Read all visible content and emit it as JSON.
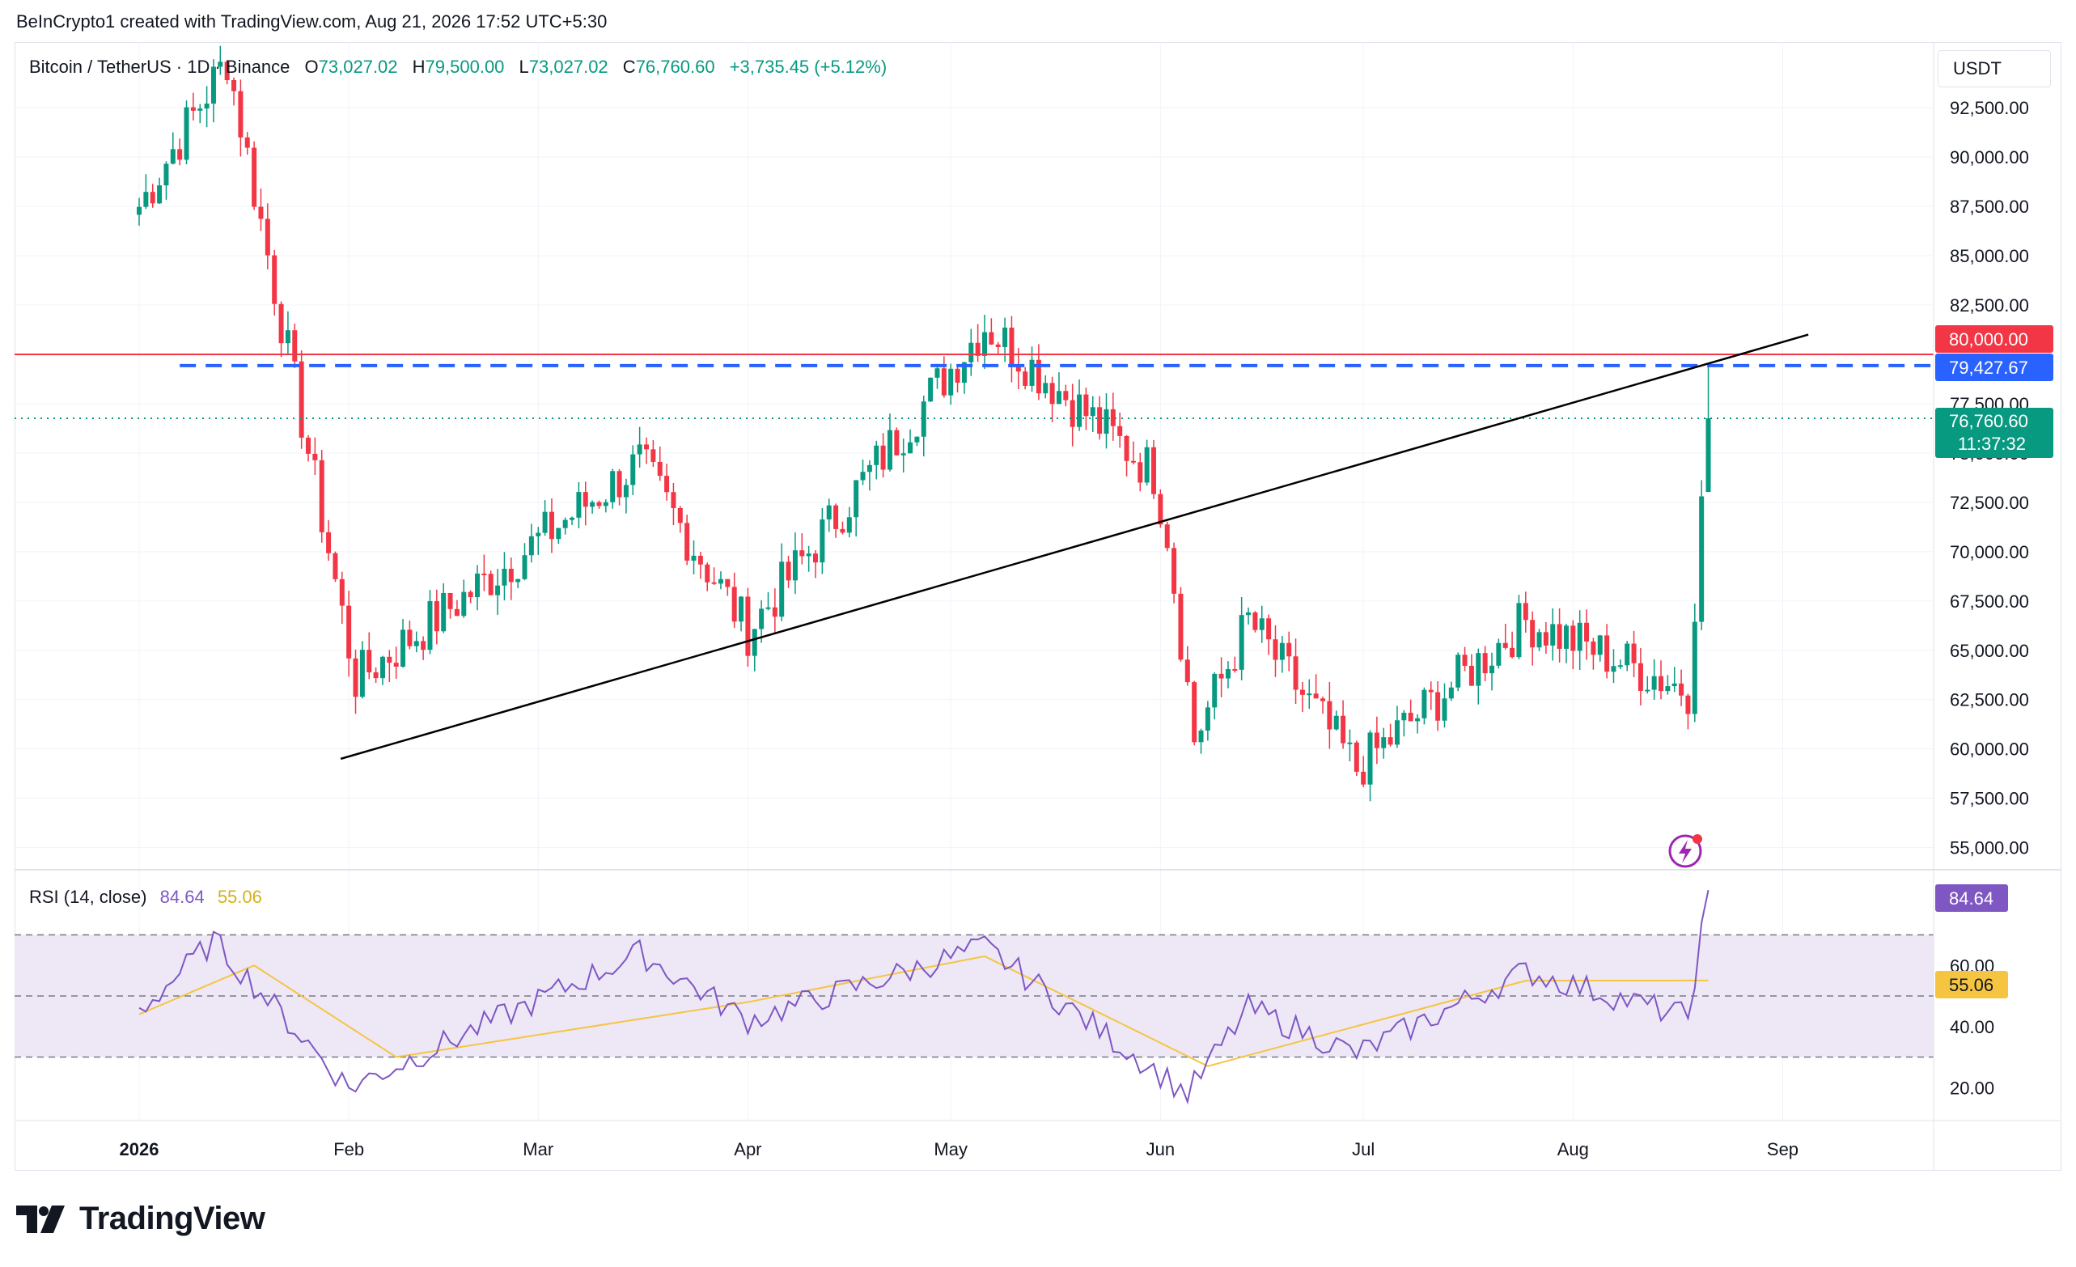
{
  "header": {
    "credit": "BeInCrypto1 created with TradingView.com, Aug 21, 2026 17:52 UTC+5:30"
  },
  "legend": {
    "symbol": "Bitcoin / TetherUS · 1D · Binance",
    "open_label": "O",
    "open": "73,027.02",
    "high_label": "H",
    "high": "79,500.00",
    "low_label": "L",
    "low": "73,027.02",
    "close_label": "C",
    "close": "76,760.60",
    "change": "+3,735.45 (+5.12%)"
  },
  "currency": "USDT",
  "rsi_legend": {
    "label": "RSI (14, close)",
    "value": "84.64",
    "ma": "55.06"
  },
  "badges": {
    "resistance": "80,000.00",
    "dashed_level": "79,427.67",
    "last_price": "76,760.60",
    "countdown": "11:37:32",
    "rsi_value": "84.64",
    "rsi_ma": "55.06"
  },
  "footer": {
    "brand": "TradingView"
  },
  "colors": {
    "up": "#089981",
    "down": "#f23645",
    "resistance": "#f23645",
    "dashed_level": "#2962ff",
    "trendline": "#000000",
    "rsi_line": "#7e57c2",
    "rsi_ma": "#f5c542",
    "rsi_band": "#ede7f6"
  },
  "chart_data": [
    {
      "type": "candlestick",
      "price_axis": {
        "ticks": [
          "92,500.00",
          "90,000.00",
          "87,500.00",
          "85,000.00",
          "82,500.00",
          "77,500.00",
          "75,000.00",
          "72,500.00",
          "70,000.00",
          "67,500.00",
          "65,000.00",
          "62,500.00",
          "60,000.00",
          "57,500.00",
          "55,000.00"
        ],
        "range": [
          54000,
          95500
        ]
      },
      "time_axis": {
        "ticks": [
          "2026",
          "Feb",
          "Mar",
          "Apr",
          "May",
          "Jun",
          "Jul",
          "Aug",
          "Sep"
        ]
      },
      "key_points": [
        {
          "date": "2026-01-01",
          "close": 87500
        },
        {
          "date": "2026-01-14",
          "close": 95000
        },
        {
          "date": "2026-02-02",
          "close": 63500
        },
        {
          "date": "2026-03-16",
          "close": 74500
        },
        {
          "date": "2026-04-01",
          "close": 66000
        },
        {
          "date": "2026-05-06",
          "close": 81500
        },
        {
          "date": "2026-05-31",
          "close": 74000
        },
        {
          "date": "2026-06-02",
          "close": 71000
        },
        {
          "date": "2026-06-06",
          "close": 60500
        },
        {
          "date": "2026-06-14",
          "close": 66500
        },
        {
          "date": "2026-06-30",
          "close": 59000
        },
        {
          "date": "2026-07-25",
          "close": 66500
        },
        {
          "date": "2026-08-18",
          "close": 63000
        },
        {
          "date": "2026-08-21",
          "close": 76760.6
        }
      ],
      "levels": [
        {
          "name": "resistance",
          "value": 80000,
          "style": "solid"
        },
        {
          "name": "dashed_level",
          "value": 79427.67,
          "style": "dashed"
        },
        {
          "name": "last_price",
          "value": 76760.6,
          "style": "dotted"
        }
      ],
      "trendline": {
        "from": {
          "date": "2026-02-01",
          "price": 59500
        },
        "to": {
          "date": "2026-08-31",
          "price": 81000
        }
      }
    },
    {
      "type": "line",
      "axis": {
        "ticks": [
          "80.00",
          "60.00",
          "40.00",
          "20.00"
        ],
        "range": [
          10,
          90
        ]
      },
      "bands": {
        "upper": 70,
        "middle": 50,
        "lower": 30
      },
      "series": [
        {
          "name": "RSI",
          "key_points": [
            {
              "date": "2026-01-01",
              "value": 45
            },
            {
              "date": "2026-01-12",
              "value": 68
            },
            {
              "date": "2026-02-01",
              "value": 20
            },
            {
              "date": "2026-03-16",
              "value": 64
            },
            {
              "date": "2026-04-01",
              "value": 42
            },
            {
              "date": "2026-05-06",
              "value": 66
            },
            {
              "date": "2026-06-05",
              "value": 18
            },
            {
              "date": "2026-06-14",
              "value": 46
            },
            {
              "date": "2026-06-30",
              "value": 31
            },
            {
              "date": "2026-07-25",
              "value": 58
            },
            {
              "date": "2026-08-18",
              "value": 43
            },
            {
              "date": "2026-08-21",
              "value": 84.64
            }
          ]
        },
        {
          "name": "RSI-based MA",
          "key_points": [
            {
              "date": "2026-01-01",
              "value": 44
            },
            {
              "date": "2026-01-18",
              "value": 60
            },
            {
              "date": "2026-02-08",
              "value": 30
            },
            {
              "date": "2026-04-01",
              "value": 48
            },
            {
              "date": "2026-05-06",
              "value": 63
            },
            {
              "date": "2026-06-08",
              "value": 27
            },
            {
              "date": "2026-07-25",
              "value": 55
            },
            {
              "date": "2026-08-21",
              "value": 55.06
            }
          ]
        }
      ]
    }
  ]
}
